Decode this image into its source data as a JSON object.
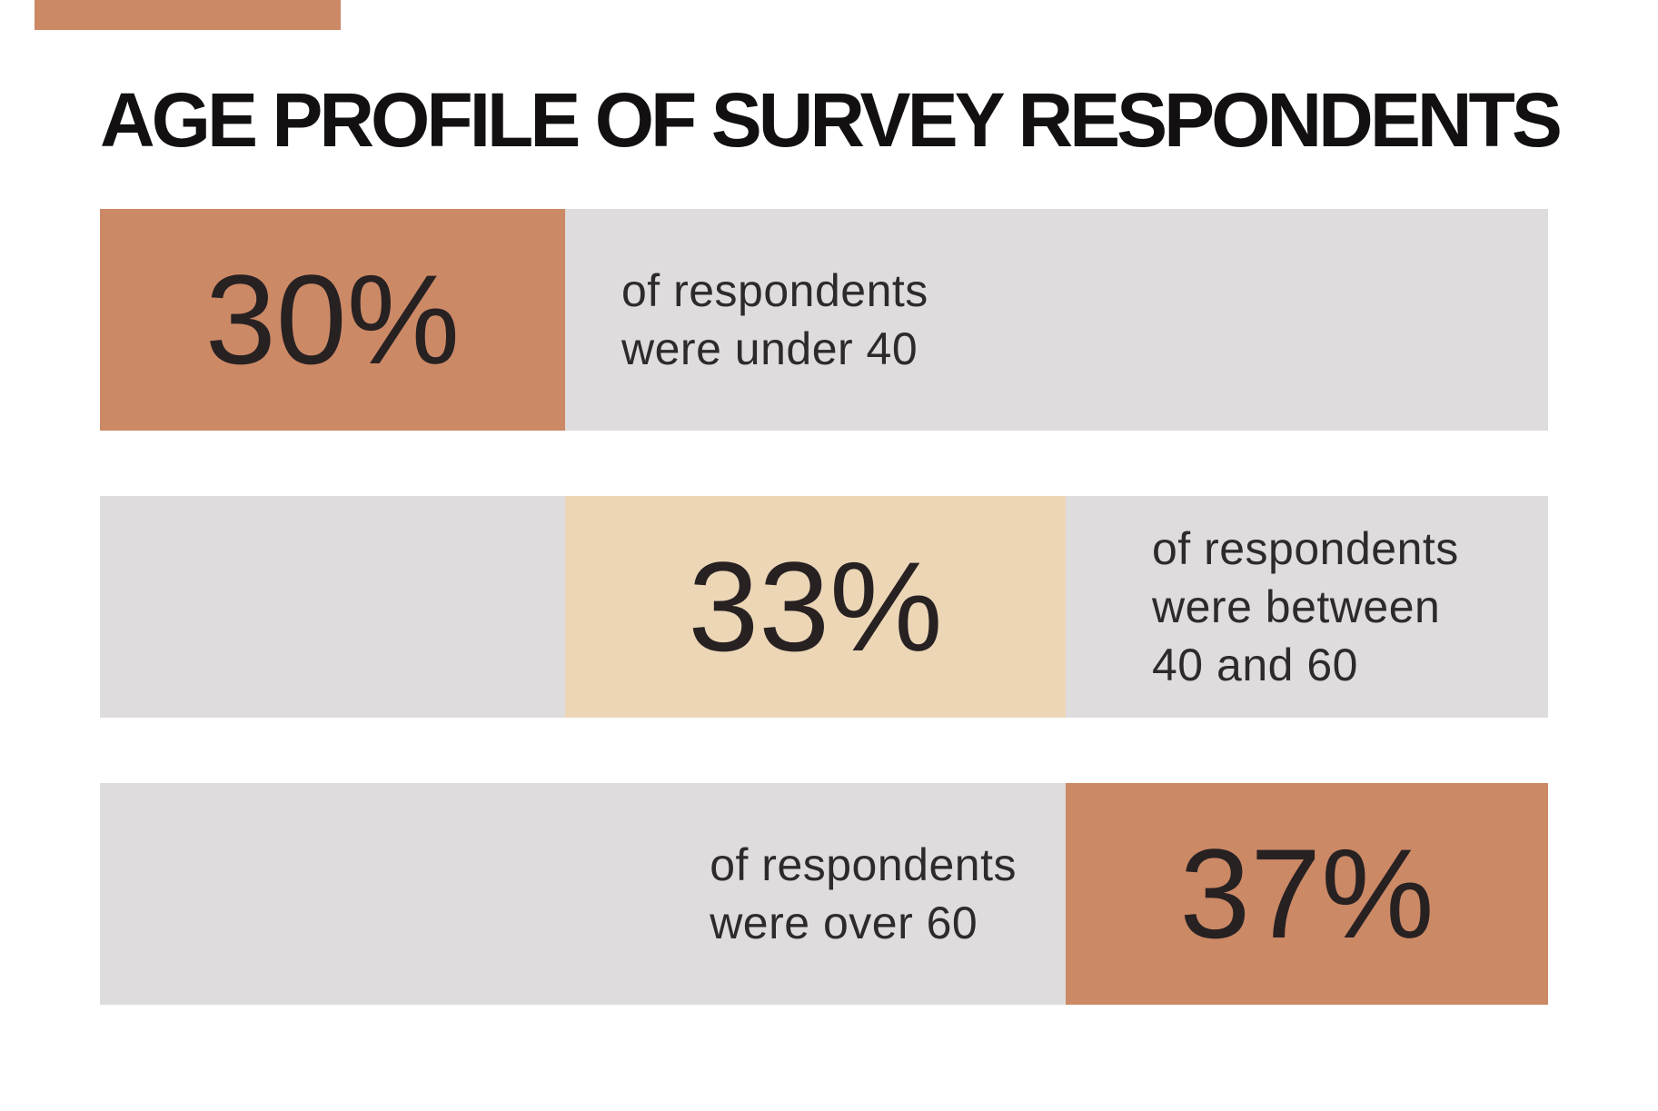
{
  "title": "AGE PROFILE OF SURVEY RESPONDENTS",
  "colors": {
    "terracotta": "#CC8966",
    "cream": "#ECD6B6",
    "gray": "#DEDCDC",
    "background": "#FFFFFF",
    "title_text": "#121011",
    "body_text": "#2E2A2B"
  },
  "decor": {
    "corner_accent_color": "#CC8966"
  },
  "chart_data": {
    "type": "bar",
    "title": "AGE PROFILE OF SURVEY RESPONDENTS",
    "categories": [
      "under 40",
      "between 40 and 60",
      "over 60"
    ],
    "values": [
      30,
      33,
      37
    ],
    "unit": "%",
    "orientation": "horizontal",
    "layout": "three full-width rows; highlighted value segment positioned left, middle, right respectively like a stacked distribution",
    "segment_colors": [
      "#CC8966",
      "#ECD6B6",
      "#CC8966"
    ],
    "track_color": "#DEDCDC",
    "grid": false,
    "legend": false
  },
  "bars": [
    {
      "value": "30%",
      "description_lines": [
        "of respondents",
        "were under 40"
      ],
      "highlight_position": "left",
      "highlight_color": "#CC8966"
    },
    {
      "value": "33%",
      "description_lines": [
        "of respondents",
        "were between",
        "40 and 60"
      ],
      "highlight_position": "middle",
      "highlight_color": "#ECD6B6"
    },
    {
      "value": "37%",
      "description_lines": [
        "of respondents",
        "were over 60"
      ],
      "highlight_position": "right",
      "highlight_color": "#CC8966"
    }
  ]
}
